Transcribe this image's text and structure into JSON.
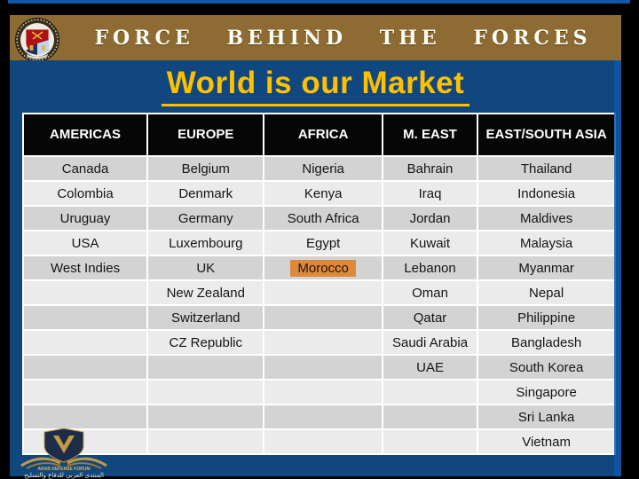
{
  "banner": {
    "title": "FORCE  BEHIND  THE  FORCES"
  },
  "heading": "World is our Market",
  "table": {
    "columns": [
      "AMERICAS",
      "EUROPE",
      "AFRICA",
      "M. EAST",
      "EAST/SOUTH ASIA"
    ],
    "rows": [
      [
        "Canada",
        "Belgium",
        "Nigeria",
        "Bahrain",
        "Thailand"
      ],
      [
        "Colombia",
        "Denmark",
        "Kenya",
        "Iraq",
        "Indonesia"
      ],
      [
        "Uruguay",
        "Germany",
        "South Africa",
        "Jordan",
        "Maldives"
      ],
      [
        "USA",
        "Luxembourg",
        "Egypt",
        "Kuwait",
        "Malaysia"
      ],
      [
        "West Indies",
        "UK",
        "Morocco",
        "Lebanon",
        "Myanmar"
      ],
      [
        "",
        "New Zealand",
        "",
        "Oman",
        "Nepal"
      ],
      [
        "",
        "Switzerland",
        "",
        "Qatar",
        "Philippine"
      ],
      [
        "",
        "CZ Republic",
        "",
        "Saudi Arabia",
        "Bangladesh"
      ],
      [
        "",
        "",
        "",
        "UAE",
        "South Korea"
      ],
      [
        "",
        "",
        "",
        "",
        "Singapore"
      ],
      [
        "",
        "",
        "",
        "",
        "Sri Lanka"
      ],
      [
        "",
        "",
        "",
        "",
        "Vietnam"
      ]
    ],
    "highlight": {
      "row": 4,
      "col": 2,
      "text": "Morocco",
      "color": "#dd893c"
    }
  },
  "watermark": {
    "line1": "ARAB DEFENSE FORUM",
    "line2": "المنتدى العربي للدفاع والتسليح"
  },
  "colors": {
    "heading-yellow": "#ffc000",
    "banner-brown": "#8e6b33",
    "slide-blue": "#11477f",
    "strip-blue": "#1157a5",
    "highlight-orange": "#dd893c",
    "header-cell-black": "#060606",
    "row-dark": "#d4d3d3",
    "row-light": "#ecebeb"
  }
}
